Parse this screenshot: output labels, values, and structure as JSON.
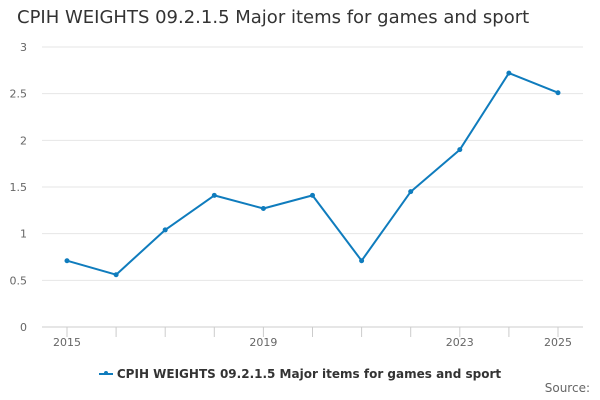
{
  "chart_data": {
    "type": "line",
    "title": "CPIH WEIGHTS 09.2.1.5 Major items for games and sport",
    "xlabel": "",
    "ylabel": "",
    "x": [
      2015,
      2016,
      2017,
      2018,
      2019,
      2020,
      2021,
      2022,
      2023,
      2024,
      2025
    ],
    "x_tick_labels": [
      "2015",
      "2019",
      "2023",
      "2025"
    ],
    "y_ticks": [
      "0",
      "0.5",
      "1",
      "1.5",
      "2",
      "2.5",
      "3"
    ],
    "ylim": [
      0,
      3
    ],
    "grid": true,
    "legend_position": "bottom",
    "series": [
      {
        "name": "CPIH WEIGHTS 09.2.1.5 Major items for games and sport",
        "color": "#0f7cbd",
        "values": [
          0.71,
          0.56,
          1.04,
          1.41,
          1.27,
          1.41,
          0.71,
          1.45,
          1.9,
          2.72,
          2.51
        ]
      }
    ]
  },
  "footer": {
    "source_label": "Source:"
  }
}
